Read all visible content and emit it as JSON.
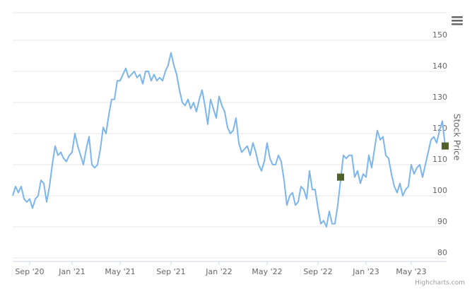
{
  "chart_data": {
    "type": "line",
    "y_axis_title": "Stock Price",
    "credits": "Highcharts.com",
    "categories": [
      null,
      null,
      null,
      null,
      null,
      null,
      "Sep '20",
      null,
      null,
      null,
      null,
      null,
      null,
      null,
      null,
      null,
      null,
      null,
      null,
      null,
      null,
      "Jan '21",
      null,
      null,
      null,
      null,
      null,
      null,
      null,
      null,
      null,
      null,
      null,
      null,
      null,
      null,
      null,
      null,
      "May '21",
      null,
      null,
      null,
      null,
      null,
      null,
      null,
      null,
      null,
      null,
      null,
      null,
      null,
      null,
      null,
      null,
      null,
      "Sep '21",
      null,
      null,
      null,
      null,
      null,
      null,
      null,
      null,
      null,
      null,
      null,
      null,
      null,
      null,
      null,
      null,
      "Jan '22",
      null,
      null,
      null,
      null,
      null,
      null,
      null,
      null,
      null,
      null,
      null,
      null,
      null,
      null,
      null,
      null,
      "May '22",
      null,
      null,
      null,
      null,
      null,
      null,
      null,
      null,
      null,
      null,
      null,
      null,
      null,
      null,
      null,
      null,
      null,
      "Sep '22",
      null,
      null,
      null,
      null,
      null,
      null,
      null,
      null,
      null,
      null,
      null,
      null,
      null,
      null,
      null,
      null,
      "Jan '23",
      null,
      null,
      null,
      null,
      null,
      null,
      null,
      null,
      null,
      null,
      null,
      null,
      null,
      null,
      null,
      "May '23",
      null,
      null,
      null,
      null,
      null,
      null,
      null,
      null,
      null,
      null,
      null,
      null
    ],
    "series": [
      {
        "color": "#7cb5ec",
        "values": [
          100,
          103,
          101,
          103,
          99,
          98,
          99,
          96,
          99,
          100,
          105,
          104,
          98,
          103,
          110,
          116,
          113,
          114,
          112,
          111,
          113,
          114,
          120,
          116,
          113,
          110,
          115,
          119,
          110,
          109,
          110,
          115,
          122,
          120,
          126,
          131,
          131,
          137,
          137,
          139,
          141,
          138,
          139,
          140,
          138,
          139,
          136,
          140,
          140,
          137,
          139,
          137,
          138,
          137,
          140,
          142,
          146,
          142,
          139,
          134,
          130,
          129,
          131,
          128,
          130,
          127,
          131,
          134,
          129,
          123,
          131,
          128,
          125,
          132,
          129,
          127,
          122,
          120,
          121,
          125,
          117,
          114,
          115,
          116,
          113,
          117,
          114,
          110,
          108,
          111,
          117,
          112,
          110,
          110,
          113,
          111,
          105,
          97,
          100,
          101,
          97,
          98,
          103,
          102,
          99,
          108,
          102,
          102,
          96,
          91,
          92,
          90,
          95,
          91,
          91,
          97,
          105,
          113,
          112,
          113,
          113,
          106,
          108,
          104,
          107,
          106,
          113,
          109,
          115,
          121,
          118,
          119,
          113,
          112,
          107,
          103,
          101,
          104,
          100,
          102,
          103,
          110,
          107,
          109,
          110,
          106,
          110,
          114,
          118,
          119,
          117,
          121,
          124,
          116
        ]
      },
      {
        "color": "#4f6228",
        "marker": "square",
        "values": [
          null,
          null,
          null,
          null,
          null,
          null,
          null,
          null,
          null,
          null,
          null,
          null,
          null,
          null,
          null,
          null,
          null,
          null,
          null,
          null,
          null,
          null,
          null,
          null,
          null,
          null,
          null,
          null,
          null,
          null,
          null,
          null,
          null,
          null,
          null,
          null,
          null,
          null,
          null,
          null,
          null,
          null,
          null,
          null,
          null,
          null,
          null,
          null,
          null,
          null,
          null,
          null,
          null,
          null,
          null,
          null,
          null,
          null,
          null,
          null,
          null,
          null,
          null,
          null,
          null,
          null,
          null,
          null,
          null,
          null,
          null,
          null,
          null,
          null,
          null,
          null,
          null,
          null,
          null,
          null,
          null,
          null,
          null,
          null,
          null,
          null,
          null,
          null,
          null,
          null,
          null,
          null,
          null,
          null,
          null,
          null,
          null,
          null,
          null,
          null,
          null,
          null,
          null,
          null,
          null,
          null,
          null,
          null,
          null,
          null,
          null,
          null,
          null,
          null,
          null,
          null,
          106,
          null,
          null,
          null,
          null,
          null,
          null,
          null,
          null,
          null,
          null,
          null,
          null,
          null,
          null,
          null,
          null,
          null,
          null,
          null,
          null,
          null,
          null,
          null,
          null,
          null,
          null,
          null,
          null,
          null,
          null,
          null,
          null,
          null,
          null,
          null,
          null,
          116
        ]
      }
    ],
    "ylim": [
      80,
      160
    ],
    "yticks": [
      80,
      90,
      100,
      110,
      120,
      130,
      140,
      150
    ],
    "grid": true
  }
}
